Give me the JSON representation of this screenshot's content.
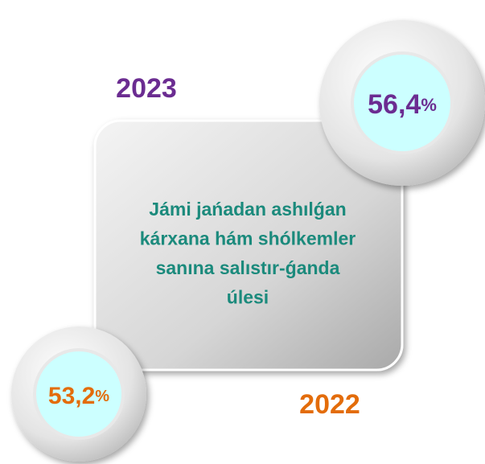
{
  "infographic": {
    "top": {
      "year": "2023",
      "number": "56,4",
      "unit": "%"
    },
    "bottom": {
      "year": "2022",
      "number": "53,2",
      "unit": "%"
    },
    "center_lines": [
      "Jámi jańadan ashılǵan",
      "kárxana hám shólkemler",
      "sanına salıstır-ǵanda",
      "úlesi"
    ]
  }
}
